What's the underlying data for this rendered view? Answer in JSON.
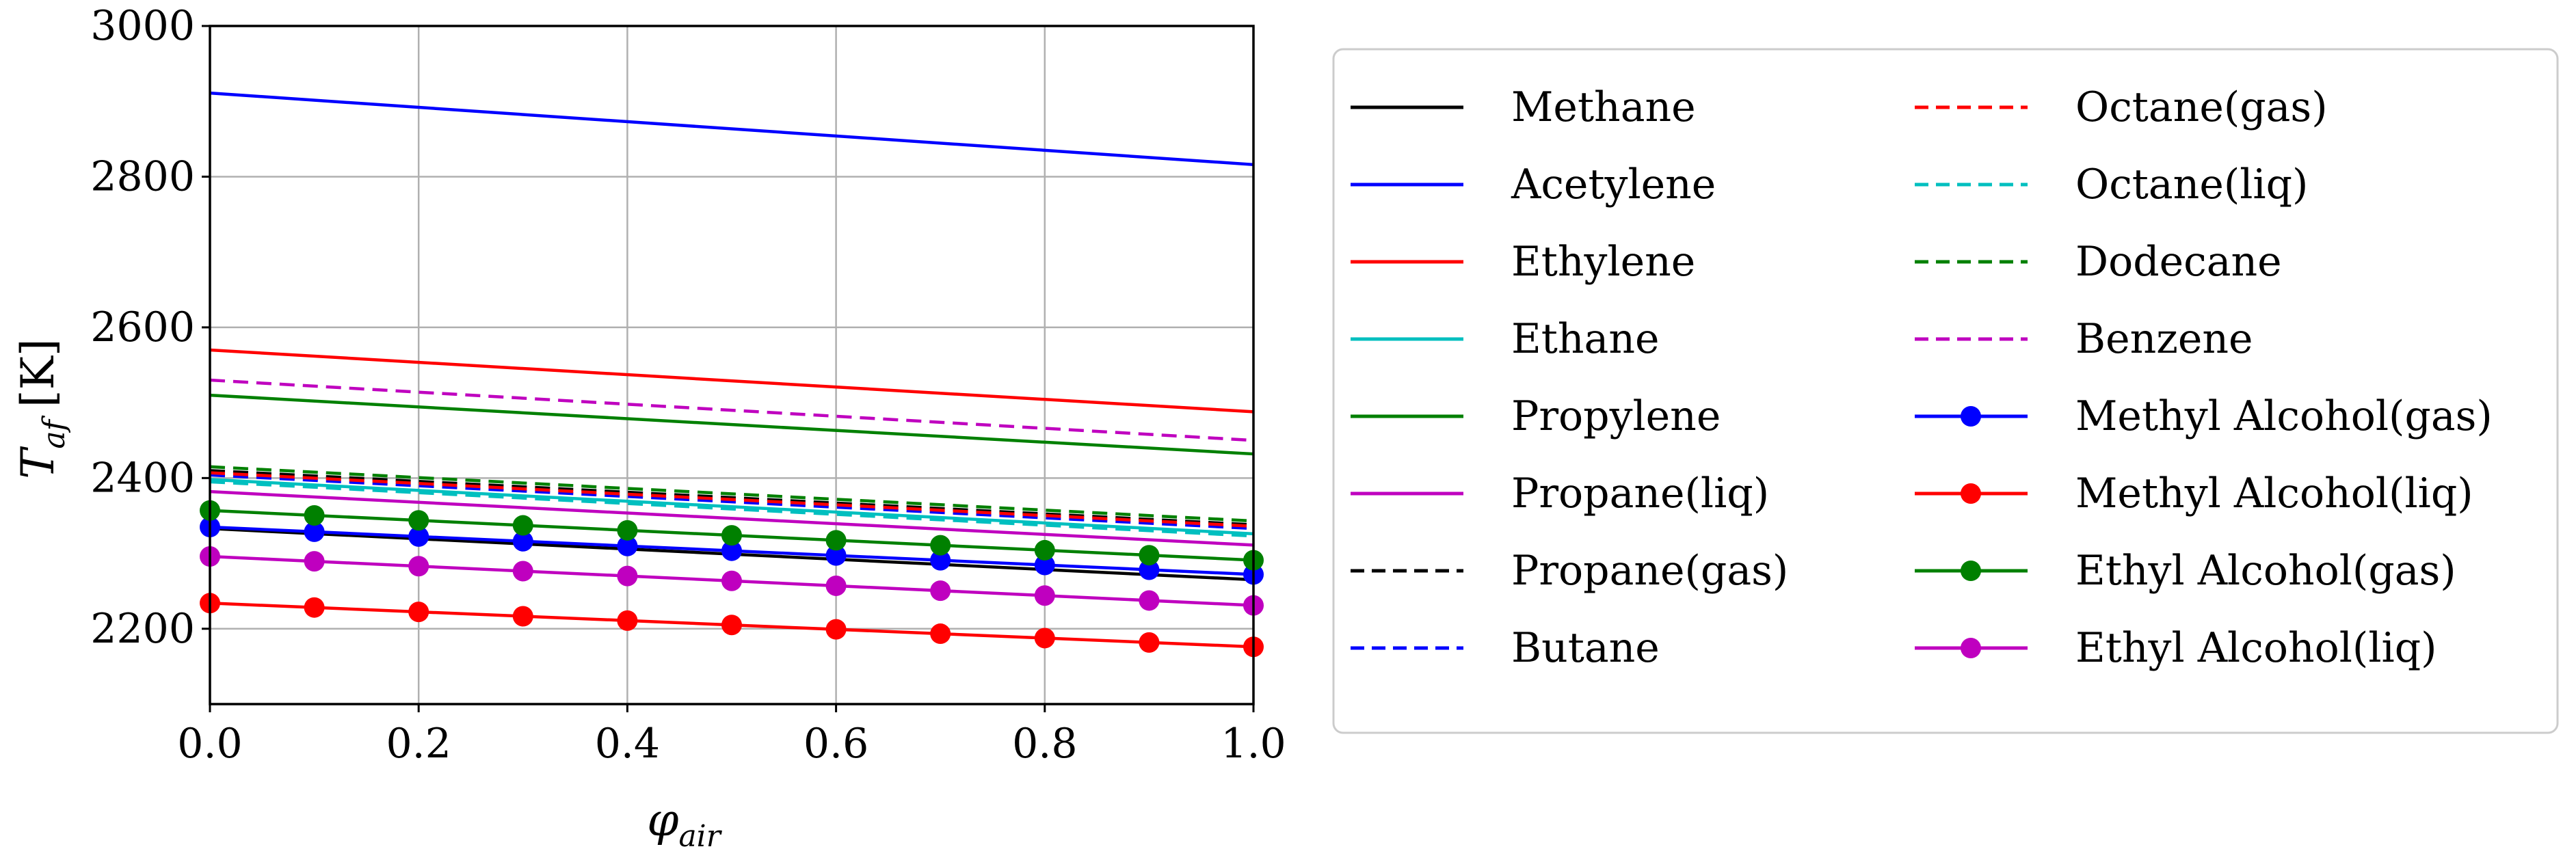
{
  "chart_data": {
    "type": "line",
    "xlabel": "φair",
    "xlabel_main": "φ",
    "xlabel_sub": "air",
    "ylabel": "Taf [K]",
    "ylabel_main": "T",
    "ylabel_sub": "af",
    "ylabel_units": "[K]",
    "xlim": [
      0,
      1.0
    ],
    "ylim": [
      2100,
      3000
    ],
    "grid": true,
    "legend_position": "outside-right",
    "legend_columns": 2,
    "xticks": [
      0.0,
      0.2,
      0.4,
      0.6,
      0.8,
      1.0
    ],
    "xtick_labels": [
      "0.0",
      "0.2",
      "0.4",
      "0.6",
      "0.8",
      "1.0"
    ],
    "yticks": [
      2200,
      2400,
      2600,
      2800,
      3000
    ],
    "ytick_labels": [
      "2200",
      "2400",
      "2600",
      "2800",
      "3000"
    ],
    "marker_x": [
      0.0,
      0.1,
      0.2,
      0.3,
      0.4,
      0.5,
      0.6,
      0.7,
      0.8,
      0.9,
      1.0
    ],
    "series": [
      {
        "name": "Methane",
        "color": "#000000",
        "dash": "solid",
        "marker": false,
        "x": [
          0,
          1
        ],
        "y": [
          2333,
          2265
        ]
      },
      {
        "name": "Acetylene",
        "color": "#0000ff",
        "dash": "solid",
        "marker": false,
        "x": [
          0,
          1
        ],
        "y": [
          2911,
          2816
        ]
      },
      {
        "name": "Ethylene",
        "color": "#ff0000",
        "dash": "solid",
        "marker": false,
        "x": [
          0,
          1
        ],
        "y": [
          2570,
          2488
        ]
      },
      {
        "name": "Ethane",
        "color": "#00bfbf",
        "dash": "solid",
        "marker": false,
        "x": [
          0,
          1
        ],
        "y": [
          2398,
          2326
        ]
      },
      {
        "name": "Propylene",
        "color": "#008000",
        "dash": "solid",
        "marker": false,
        "x": [
          0,
          1
        ],
        "y": [
          2510,
          2432
        ]
      },
      {
        "name": "Propane(liq)",
        "color": "#bf00bf",
        "dash": "solid",
        "marker": false,
        "x": [
          0,
          1
        ],
        "y": [
          2382,
          2311
        ]
      },
      {
        "name": "Propane(gas)",
        "color": "#000000",
        "dash": "dashed",
        "marker": false,
        "x": [
          0,
          1
        ],
        "y": [
          2410,
          2338
        ]
      },
      {
        "name": "Butane",
        "color": "#0000ff",
        "dash": "dashed",
        "marker": false,
        "x": [
          0,
          1
        ],
        "y": [
          2404,
          2333
        ]
      },
      {
        "name": "Octane(gas)",
        "color": "#ff0000",
        "dash": "dashed",
        "marker": false,
        "x": [
          0,
          1
        ],
        "y": [
          2407,
          2336
        ]
      },
      {
        "name": "Octane(liq)",
        "color": "#00bfbf",
        "dash": "dashed",
        "marker": false,
        "x": [
          0,
          1
        ],
        "y": [
          2395,
          2323
        ]
      },
      {
        "name": "Dodecane",
        "color": "#008000",
        "dash": "dashed",
        "marker": false,
        "x": [
          0,
          1
        ],
        "y": [
          2415,
          2343
        ]
      },
      {
        "name": "Benzene",
        "color": "#bf00bf",
        "dash": "dashed",
        "marker": false,
        "x": [
          0,
          1
        ],
        "y": [
          2530,
          2450
        ]
      },
      {
        "name": "Methyl Alcohol(gas)",
        "color": "#0000ff",
        "dash": "solid",
        "marker": true,
        "x": [
          0,
          1
        ],
        "y": [
          2335,
          2272
        ]
      },
      {
        "name": "Methyl Alcohol(liq)",
        "color": "#ff0000",
        "dash": "solid",
        "marker": true,
        "x": [
          0,
          1
        ],
        "y": [
          2234,
          2176
        ]
      },
      {
        "name": "Ethyl Alcohol(gas)",
        "color": "#008000",
        "dash": "solid",
        "marker": true,
        "x": [
          0,
          1
        ],
        "y": [
          2357,
          2291
        ]
      },
      {
        "name": "Ethyl Alcohol(liq)",
        "color": "#bf00bf",
        "dash": "solid",
        "marker": true,
        "x": [
          0,
          1
        ],
        "y": [
          2296,
          2231
        ]
      }
    ]
  }
}
